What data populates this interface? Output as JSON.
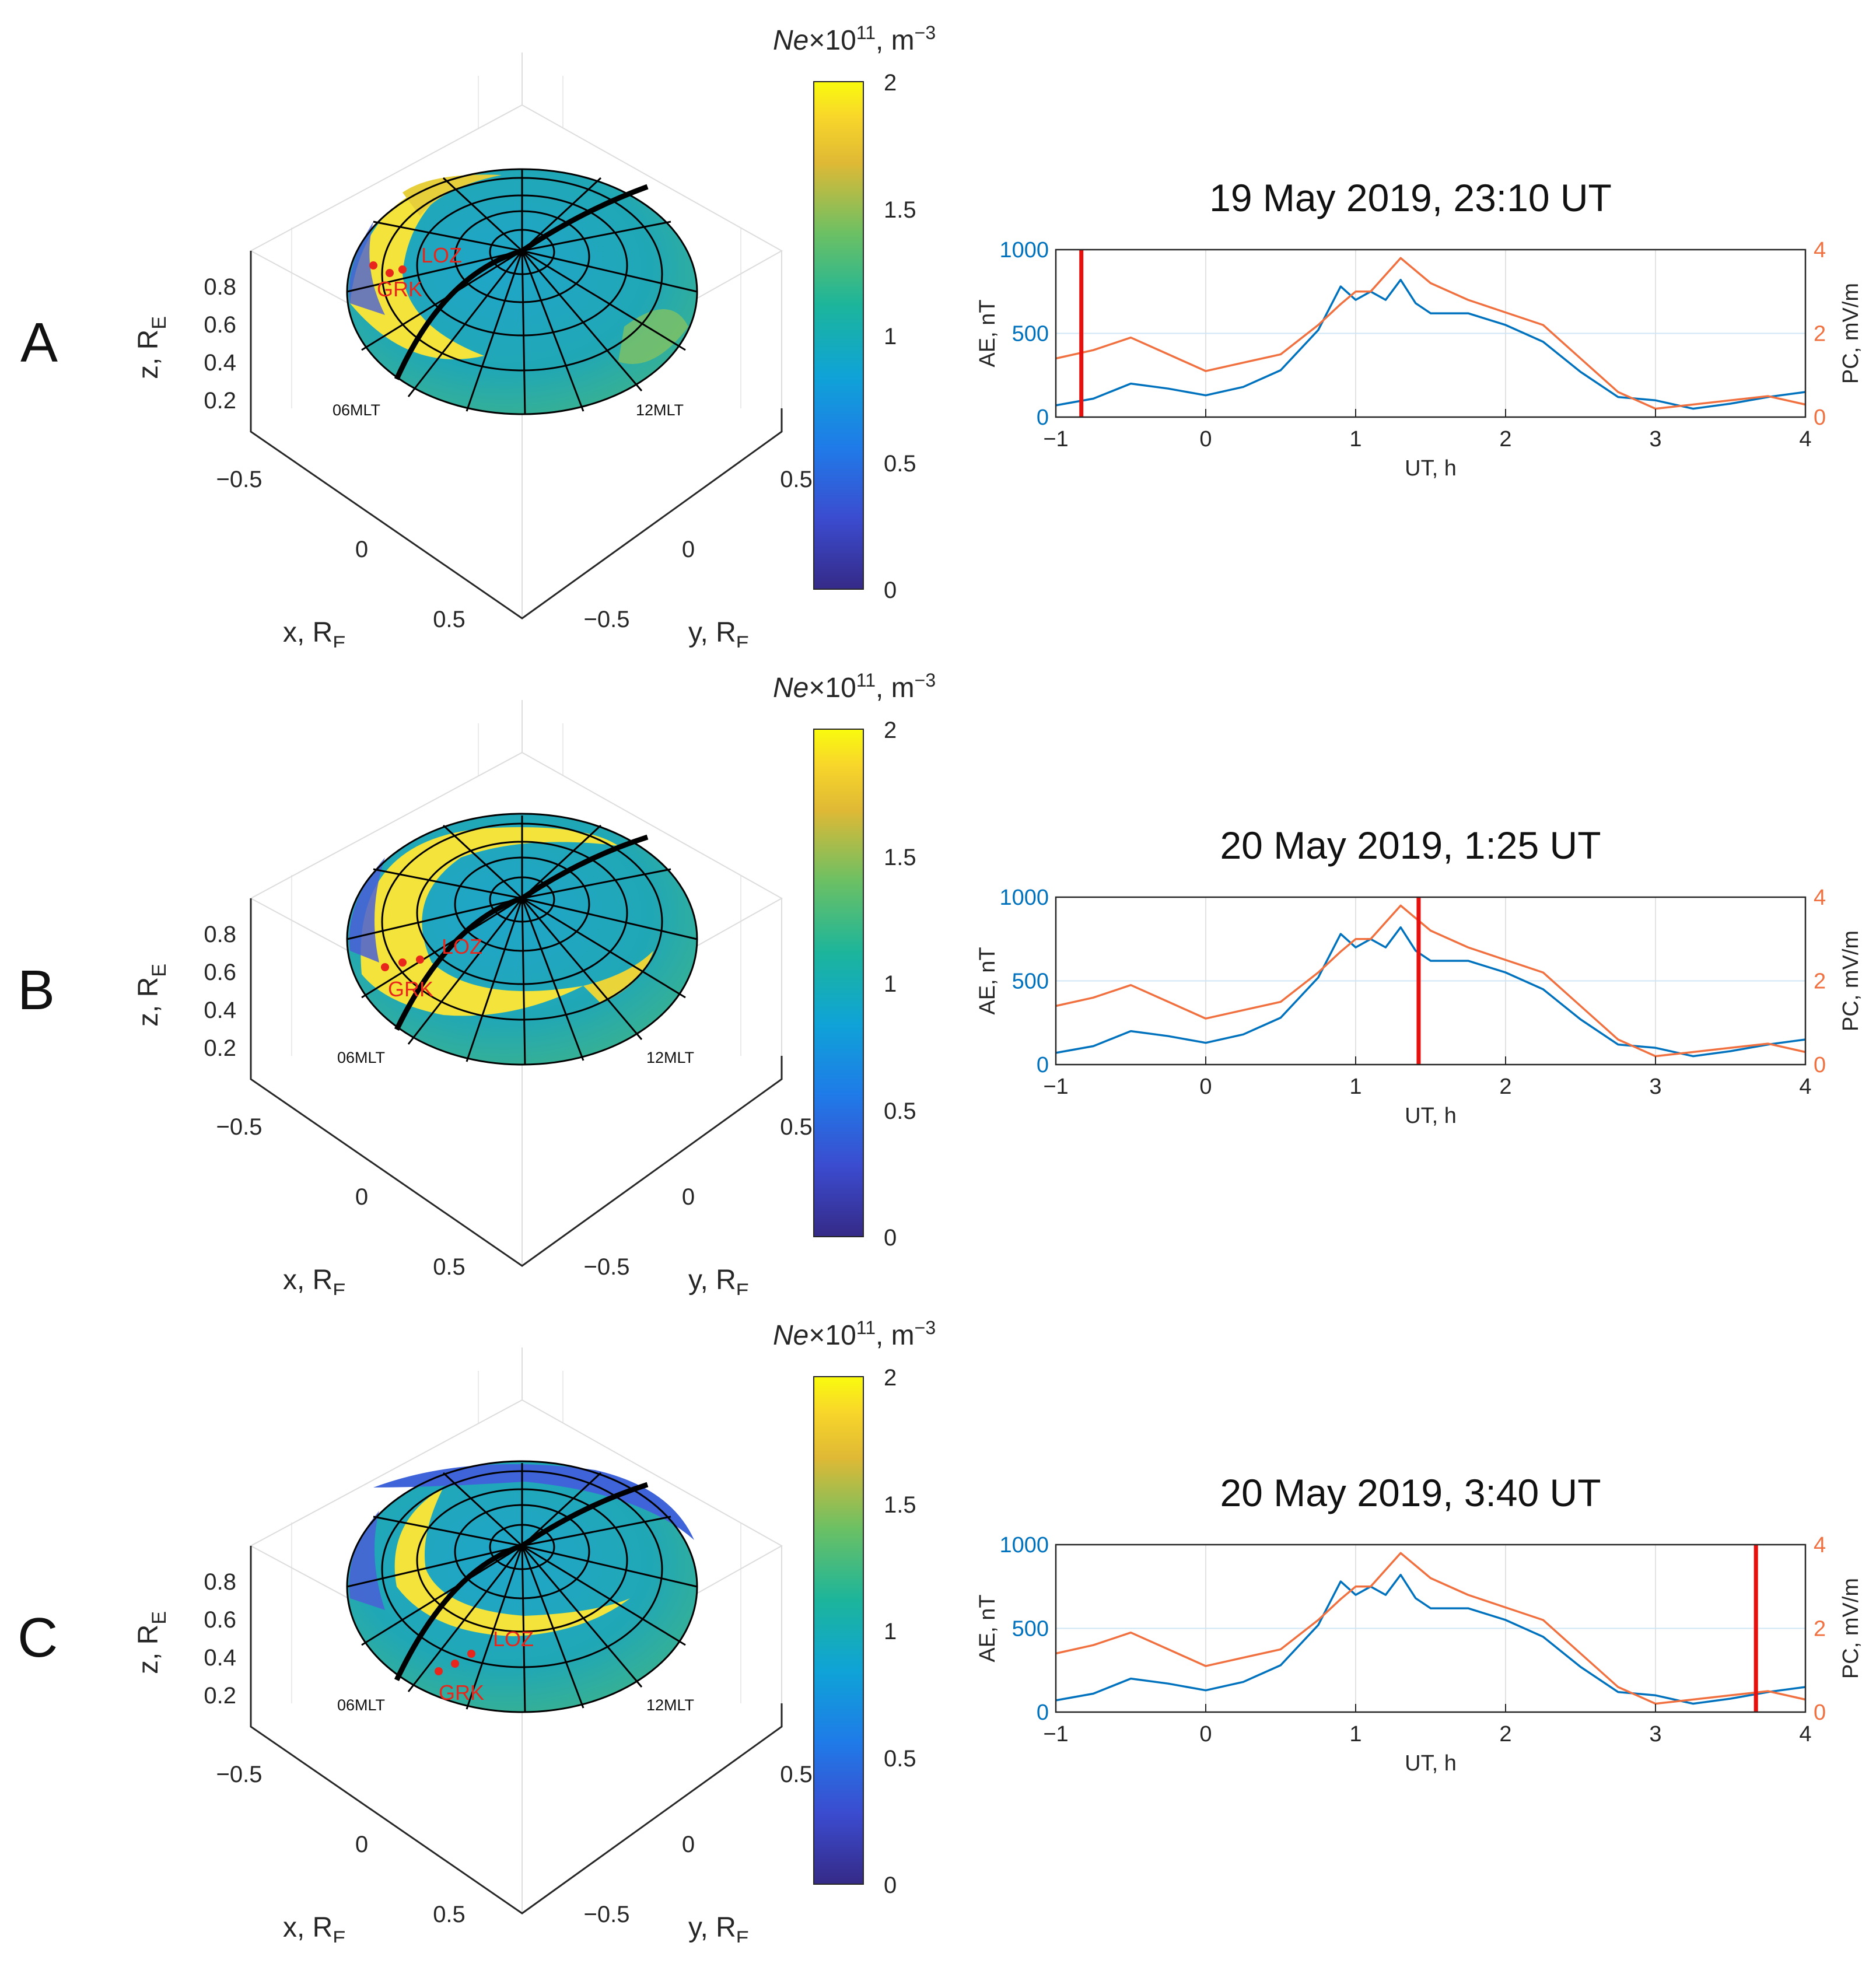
{
  "colorbar": {
    "title_var": "Ne",
    "title_rest": "×10",
    "title_exp": "11",
    "title_unit": ", m",
    "title_unit_exp": "−3",
    "ticks": [
      "0",
      "0.5",
      "1",
      "1.5",
      "2"
    ],
    "range": [
      0,
      2
    ],
    "colormap": "parula"
  },
  "globe": {
    "z_label": "z, R",
    "x_label": "x, R",
    "y_label": "y, R",
    "label_sub": "E",
    "z_ticks": [
      "0.2",
      "0.4",
      "0.6",
      "0.8"
    ],
    "x_ticks": [
      "−0.5",
      "0",
      "0.5"
    ],
    "y_ticks": [
      "0.5",
      "0",
      "−0.5"
    ],
    "mlt_labels": [
      "06MLT",
      "12MLT"
    ],
    "stations": [
      "LOZ",
      "GRK"
    ],
    "colors": {
      "station": "#e8261c",
      "grid": "#000000"
    }
  },
  "timeseries_axes": {
    "xlabel": "UT, h",
    "ylabel_left": "AE, nT",
    "ylabel_right": "PC, mV/m",
    "left_ticks": [
      "0",
      "500",
      "1000"
    ],
    "right_ticks": [
      "0",
      "2",
      "4"
    ],
    "x_ticks": [
      "−1",
      "0",
      "1",
      "2",
      "3",
      "4"
    ],
    "colors": {
      "AE": "#0072bd",
      "PC": "#f07040",
      "marker": "#e8100c"
    }
  },
  "panels": [
    {
      "letter": "A",
      "title": "19 May 2019, 23:10 UT"
    },
    {
      "letter": "B",
      "title": "20 May 2019, 1:25 UT"
    },
    {
      "letter": "C",
      "title": "20 May 2019, 3:40 UT"
    }
  ],
  "chart_data": [
    {
      "type": "line",
      "title": "19 May 2019, 23:10 UT",
      "xlabel": "UT, h",
      "xlim": [
        -1,
        4
      ],
      "y_left": {
        "label": "AE, nT",
        "lim": [
          0,
          1000
        ]
      },
      "y_right": {
        "label": "PC, mV/m",
        "lim": [
          0,
          4
        ]
      },
      "grid": true,
      "series": [
        {
          "name": "AE",
          "axis": "left",
          "x": [
            -1,
            -0.75,
            -0.5,
            -0.25,
            0,
            0.25,
            0.5,
            0.75,
            0.9,
            1,
            1.1,
            1.2,
            1.3,
            1.4,
            1.5,
            1.75,
            2,
            2.25,
            2.5,
            2.75,
            3,
            3.25,
            3.5,
            3.75,
            4
          ],
          "y": [
            70,
            110,
            200,
            170,
            130,
            180,
            280,
            520,
            780,
            700,
            750,
            700,
            820,
            680,
            620,
            620,
            550,
            450,
            270,
            120,
            100,
            50,
            80,
            120,
            150
          ]
        },
        {
          "name": "PC",
          "axis": "right",
          "x": [
            -1,
            -0.75,
            -0.5,
            -0.25,
            0,
            0.25,
            0.5,
            0.75,
            0.9,
            1,
            1.1,
            1.2,
            1.3,
            1.4,
            1.5,
            1.75,
            2,
            2.25,
            2.5,
            2.75,
            3,
            3.25,
            3.5,
            3.75,
            4
          ],
          "y": [
            1.4,
            1.6,
            1.9,
            1.5,
            1.1,
            1.3,
            1.5,
            2.2,
            2.7,
            3,
            3,
            3.4,
            3.8,
            3.5,
            3.2,
            2.8,
            2.5,
            2.2,
            1.4,
            0.6,
            0.2,
            0.3,
            0.4,
            0.5,
            0.3
          ]
        }
      ],
      "marker_ut": -0.83
    },
    {
      "type": "line",
      "title": "20 May 2019, 1:25 UT",
      "xlabel": "UT, h",
      "xlim": [
        -1,
        4
      ],
      "y_left": {
        "label": "AE, nT",
        "lim": [
          0,
          1000
        ]
      },
      "y_right": {
        "label": "PC, mV/m",
        "lim": [
          0,
          4
        ]
      },
      "grid": true,
      "series": [
        {
          "name": "AE",
          "axis": "left",
          "x": [
            -1,
            -0.75,
            -0.5,
            -0.25,
            0,
            0.25,
            0.5,
            0.75,
            0.9,
            1,
            1.1,
            1.2,
            1.3,
            1.4,
            1.5,
            1.75,
            2,
            2.25,
            2.5,
            2.75,
            3,
            3.25,
            3.5,
            3.75,
            4
          ],
          "y": [
            70,
            110,
            200,
            170,
            130,
            180,
            280,
            520,
            780,
            700,
            750,
            700,
            820,
            680,
            620,
            620,
            550,
            450,
            270,
            120,
            100,
            50,
            80,
            120,
            150
          ]
        },
        {
          "name": "PC",
          "axis": "right",
          "x": [
            -1,
            -0.75,
            -0.5,
            -0.25,
            0,
            0.25,
            0.5,
            0.75,
            0.9,
            1,
            1.1,
            1.2,
            1.3,
            1.4,
            1.5,
            1.75,
            2,
            2.25,
            2.5,
            2.75,
            3,
            3.25,
            3.5,
            3.75,
            4
          ],
          "y": [
            1.4,
            1.6,
            1.9,
            1.5,
            1.1,
            1.3,
            1.5,
            2.2,
            2.7,
            3,
            3,
            3.4,
            3.8,
            3.5,
            3.2,
            2.8,
            2.5,
            2.2,
            1.4,
            0.6,
            0.2,
            0.3,
            0.4,
            0.5,
            0.3
          ]
        }
      ],
      "marker_ut": 1.42
    },
    {
      "type": "line",
      "title": "20 May 2019, 3:40 UT",
      "xlabel": "UT, h",
      "xlim": [
        -1,
        4
      ],
      "y_left": {
        "label": "AE, nT",
        "lim": [
          0,
          1000
        ]
      },
      "y_right": {
        "label": "PC, mV/m",
        "lim": [
          0,
          4
        ]
      },
      "grid": true,
      "series": [
        {
          "name": "AE",
          "axis": "left",
          "x": [
            -1,
            -0.75,
            -0.5,
            -0.25,
            0,
            0.25,
            0.5,
            0.75,
            0.9,
            1,
            1.1,
            1.2,
            1.3,
            1.4,
            1.5,
            1.75,
            2,
            2.25,
            2.5,
            2.75,
            3,
            3.25,
            3.5,
            3.75,
            4
          ],
          "y": [
            70,
            110,
            200,
            170,
            130,
            180,
            280,
            520,
            780,
            700,
            750,
            700,
            820,
            680,
            620,
            620,
            550,
            450,
            270,
            120,
            100,
            50,
            80,
            120,
            150
          ]
        },
        {
          "name": "PC",
          "axis": "right",
          "x": [
            -1,
            -0.75,
            -0.5,
            -0.25,
            0,
            0.25,
            0.5,
            0.75,
            0.9,
            1,
            1.1,
            1.2,
            1.3,
            1.4,
            1.5,
            1.75,
            2,
            2.25,
            2.5,
            2.75,
            3,
            3.25,
            3.5,
            3.75,
            4
          ],
          "y": [
            1.4,
            1.6,
            1.9,
            1.5,
            1.1,
            1.3,
            1.5,
            2.2,
            2.7,
            3,
            3,
            3.4,
            3.8,
            3.5,
            3.2,
            2.8,
            2.5,
            2.2,
            1.4,
            0.6,
            0.2,
            0.3,
            0.4,
            0.5,
            0.3
          ]
        }
      ],
      "marker_ut": 3.67
    }
  ]
}
